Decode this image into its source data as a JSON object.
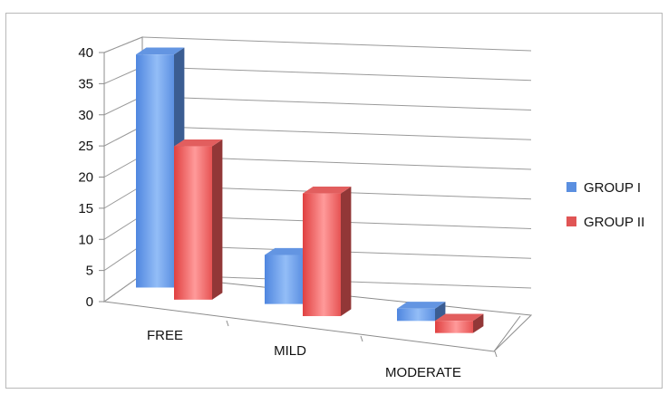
{
  "chart_data": {
    "type": "bar",
    "style": "3d-clustered-column",
    "categories": [
      "FREE",
      "MILD",
      "MODERATE"
    ],
    "series": [
      {
        "name": "GROUP I",
        "values": [
          38,
          8,
          2
        ],
        "color": "#5b8fe0"
      },
      {
        "name": "GROUP II",
        "values": [
          25,
          20,
          2
        ],
        "color": "#e05555"
      }
    ],
    "yticks": [
      "0",
      "5",
      "10",
      "15",
      "20",
      "25",
      "30",
      "35",
      "40"
    ],
    "ylim": [
      0,
      40
    ],
    "grid": true,
    "legend_position": "right"
  }
}
